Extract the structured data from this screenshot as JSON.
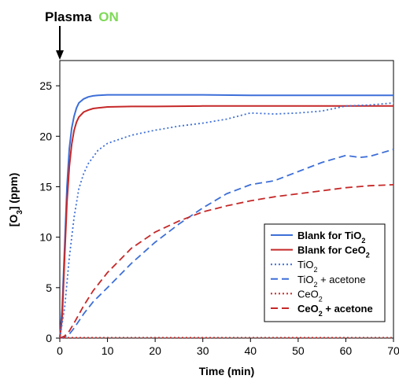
{
  "annotation": {
    "prefix": "Plasma",
    "suffix": "ON",
    "suffix_color": "#7ed957",
    "at_x": 0
  },
  "chart_data": {
    "type": "line",
    "xlabel": "Time (min)",
    "ylabel": "[O3] (ppm)",
    "xlim": [
      0,
      70
    ],
    "ylim": [
      0,
      27.5
    ],
    "xticks": [
      0,
      10,
      20,
      30,
      40,
      50,
      60,
      70
    ],
    "yticks": [
      0,
      5,
      10,
      15,
      20,
      25
    ],
    "grid": false,
    "legend_position": "bottom-right",
    "series": [
      {
        "name": "Blank for TiO2",
        "label_main": "Blank for TiO",
        "label_sub": "2",
        "label_tail": "",
        "bold": true,
        "color": "#3d6fd8",
        "style": "solid",
        "x": [
          0,
          0.5,
          1,
          1.5,
          2,
          2.5,
          3,
          3.5,
          4,
          5,
          6,
          7,
          8,
          10,
          15,
          20,
          30,
          40,
          50,
          60,
          70
        ],
        "y": [
          0,
          3,
          9,
          15,
          18.8,
          20.8,
          22,
          22.8,
          23.3,
          23.7,
          23.9,
          24.0,
          24.05,
          24.1,
          24.1,
          24.1,
          24.1,
          24.05,
          24.05,
          24.05,
          24.05
        ]
      },
      {
        "name": "Blank for CeO2",
        "label_main": "Blank for CeO",
        "label_sub": "2",
        "label_tail": "",
        "bold": true,
        "color": "#c62828",
        "style": "solid",
        "x": [
          0,
          0.5,
          1,
          1.5,
          2,
          2.5,
          3,
          3.5,
          4,
          5,
          6,
          7,
          8,
          10,
          15,
          20,
          30,
          40,
          50,
          60,
          70
        ],
        "y": [
          0,
          2,
          8,
          13.5,
          17,
          19.2,
          20.6,
          21.4,
          21.9,
          22.4,
          22.6,
          22.75,
          22.8,
          22.9,
          22.95,
          22.95,
          23.0,
          23.0,
          23.0,
          23.0,
          23.0
        ]
      },
      {
        "name": "TiO2",
        "label_main": "TiO",
        "label_sub": "2",
        "label_tail": "",
        "bold": false,
        "color": "#3d6fd8",
        "style": "dotted",
        "x": [
          0,
          1,
          2,
          3,
          4,
          5,
          6,
          8,
          10,
          15,
          20,
          25,
          30,
          35,
          40,
          45,
          50,
          55,
          60,
          65,
          70
        ],
        "y": [
          0,
          3,
          8,
          12,
          14.8,
          16.3,
          17.3,
          18.6,
          19.3,
          20.1,
          20.6,
          21.0,
          21.3,
          21.7,
          22.3,
          22.2,
          22.3,
          22.5,
          23.0,
          23.1,
          23.3
        ]
      },
      {
        "name": "TiO2 + acetone",
        "label_main": "TiO",
        "label_sub": "2",
        "label_tail": " + acetone",
        "bold": false,
        "color": "#3d6fd8",
        "style": "dashed",
        "x": [
          0,
          1,
          2,
          3,
          5,
          7,
          10,
          15,
          20,
          25,
          30,
          35,
          40,
          45,
          50,
          55,
          60,
          63,
          65,
          70
        ],
        "y": [
          0,
          0.1,
          0.4,
          1.0,
          2.4,
          3.6,
          5.0,
          7.4,
          9.5,
          11.3,
          12.9,
          14.3,
          15.2,
          15.6,
          16.5,
          17.4,
          18.1,
          17.9,
          18.0,
          18.7
        ]
      },
      {
        "name": "CeO2",
        "label_main": "CeO",
        "label_sub": "2",
        "label_tail": "",
        "bold": false,
        "color": "#c62828",
        "style": "dotted",
        "x": [
          0,
          70
        ],
        "y": [
          0.05,
          0.05
        ]
      },
      {
        "name": "CeO2 + acetone",
        "label_main": "CeO",
        "label_sub": "2",
        "label_tail": " + acetone",
        "bold": true,
        "color": "#c62828",
        "style": "dashed",
        "x": [
          0,
          1,
          2,
          3,
          5,
          7,
          10,
          15,
          20,
          25,
          30,
          35,
          40,
          45,
          50,
          55,
          60,
          65,
          70
        ],
        "y": [
          0,
          0.2,
          0.7,
          1.5,
          3.2,
          4.7,
          6.5,
          8.9,
          10.5,
          11.6,
          12.5,
          13.1,
          13.6,
          14.0,
          14.3,
          14.6,
          14.9,
          15.1,
          15.2
        ]
      }
    ]
  }
}
